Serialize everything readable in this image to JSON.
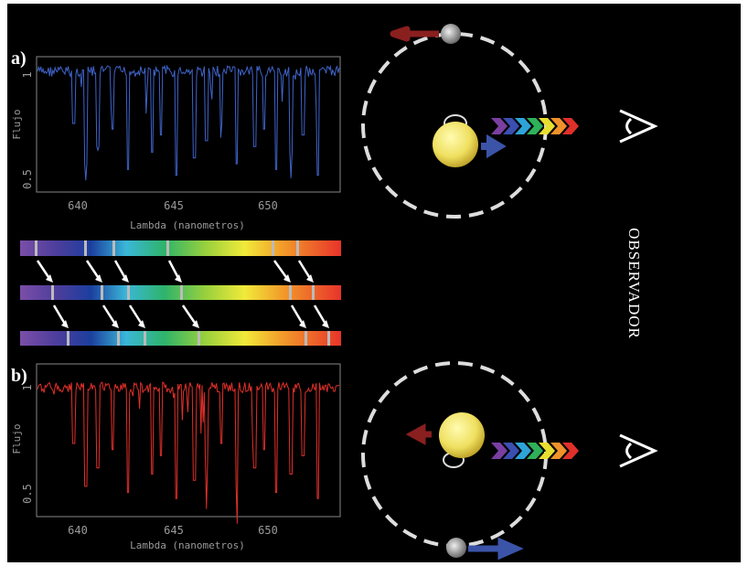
{
  "panels": [
    {
      "label": "a)",
      "y_axis_label": "Flujo",
      "x_axis_label": "Lambda (nanometros)",
      "xticks": [
        "640",
        "645",
        "650"
      ],
      "yticks": [
        "1",
        "0.5"
      ]
    },
    {
      "label": "b)",
      "y_axis_label": "Flujo",
      "x_axis_label": "Lambda (nanometros)",
      "xticks": [
        "640",
        "645",
        "650"
      ],
      "yticks": [
        "1",
        "0.5"
      ]
    }
  ],
  "observer_label": "OBSERVADOR"
}
